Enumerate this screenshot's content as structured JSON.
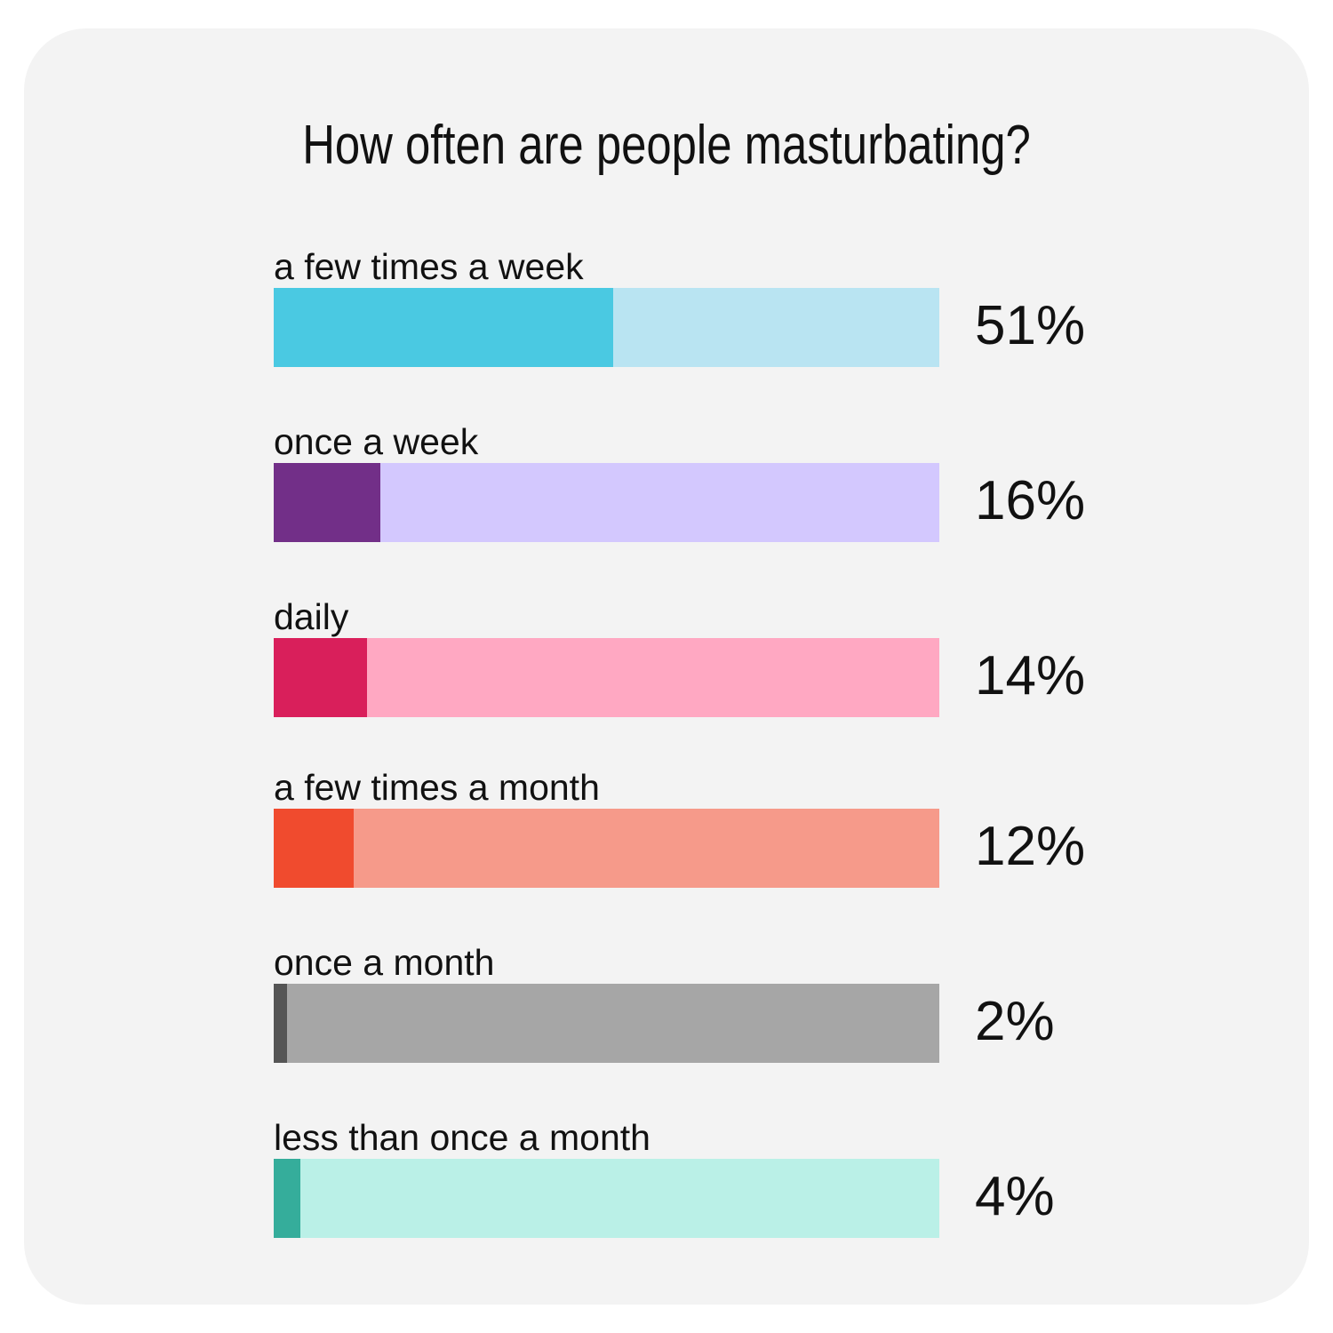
{
  "chart_data": {
    "type": "bar",
    "orientation": "horizontal",
    "title": "How often are people masturbating?",
    "categories": [
      "a few times a week",
      "once a week",
      "daily",
      "a few times a month",
      "once a month",
      "less than once a month"
    ],
    "values": [
      51,
      16,
      14,
      12,
      2,
      4
    ],
    "value_labels": [
      "51%",
      "16%",
      "14%",
      "12%",
      "2%",
      "4%"
    ],
    "xlim": [
      0,
      100
    ],
    "grid": false,
    "legend": "none",
    "colors": {
      "fill": [
        "#4ac9e2",
        "#722f88",
        "#d91f5b",
        "#f04b2e",
        "#555555",
        "#35ad9b"
      ],
      "track": [
        "#b9e4f2",
        "#d3c8fe",
        "#ffa8c2",
        "#f69a8a",
        "#a6a6a6",
        "#baf0e7"
      ]
    }
  }
}
